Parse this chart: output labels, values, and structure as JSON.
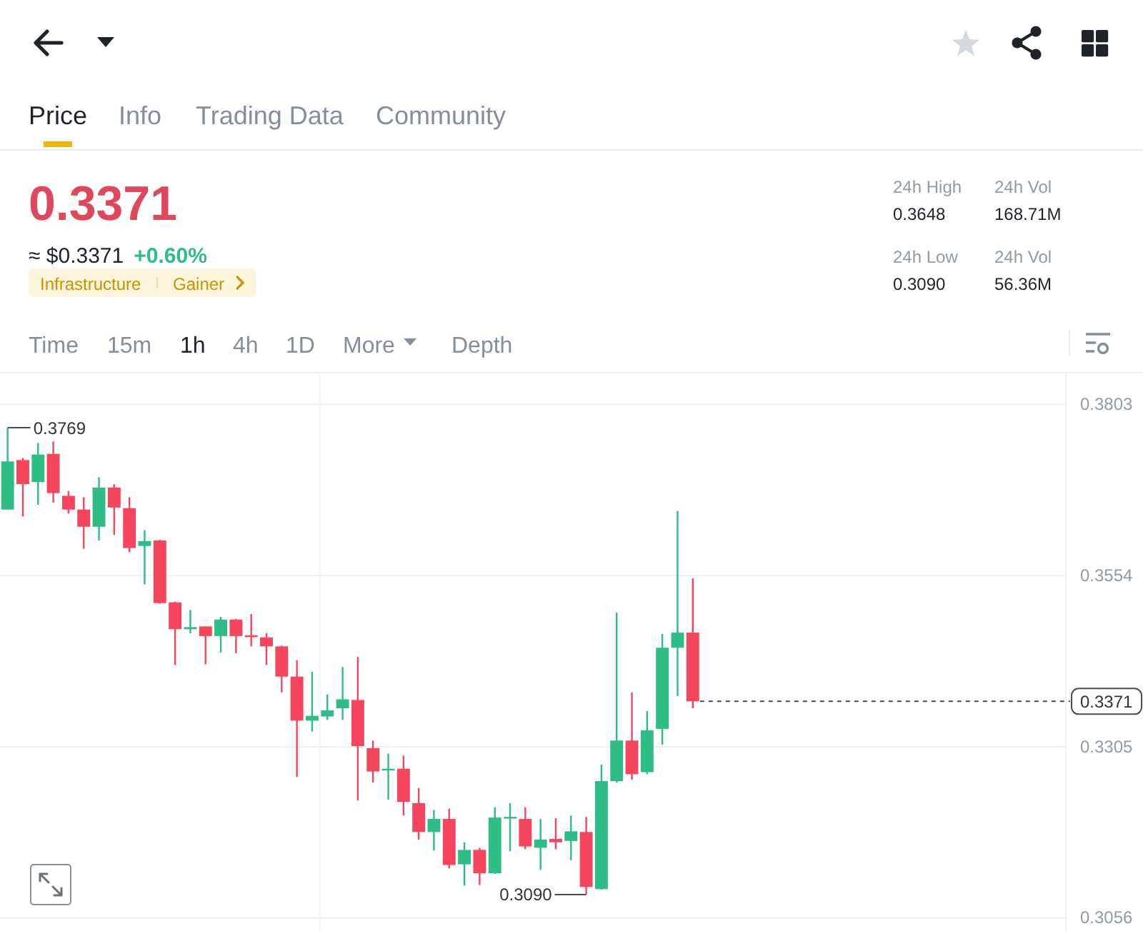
{
  "chart_data": {
    "type": "candlestick",
    "categories": [
      null,
      null,
      null,
      null,
      null,
      null,
      null,
      null,
      null,
      null,
      null,
      null,
      null,
      null,
      null,
      null,
      null,
      null,
      null,
      null,
      null,
      null,
      null,
      null,
      null,
      null,
      null,
      null,
      null,
      null,
      null,
      null,
      null,
      null,
      null,
      null,
      null,
      null,
      null,
      null,
      null,
      null,
      null,
      null,
      null,
      null,
      null,
      null,
      null,
      null,
      null,
      null,
      null,
      null,
      null,
      null,
      null,
      null,
      null,
      null,
      null,
      null,
      null,
      null,
      null,
      null,
      null,
      null,
      null,
      null
    ],
    "ohlc": [
      [
        0.365,
        0.3769,
        0.365,
        0.372
      ],
      [
        0.3722,
        0.3725,
        0.364,
        0.3687
      ],
      [
        0.369,
        0.3747,
        0.3657,
        0.373
      ],
      [
        0.3731,
        0.3749,
        0.366,
        0.3674
      ],
      [
        0.367,
        0.3677,
        0.3644,
        0.365
      ],
      [
        0.365,
        0.3668,
        0.3593,
        0.3625
      ],
      [
        0.3625,
        0.3697,
        0.3605,
        0.3682
      ],
      [
        0.3682,
        0.3687,
        0.3613,
        0.3653
      ],
      [
        0.3652,
        0.3668,
        0.3588,
        0.3594
      ],
      [
        0.3597,
        0.362,
        0.3541,
        0.3604
      ],
      [
        0.3605,
        0.3606,
        0.3513,
        0.3514
      ],
      [
        0.3515,
        0.3516,
        0.3424,
        0.3476
      ],
      [
        0.3476,
        0.3504,
        0.347,
        0.3479
      ],
      [
        0.348,
        0.348,
        0.3425,
        0.3466
      ],
      [
        0.3466,
        0.3494,
        0.3442,
        0.349
      ],
      [
        0.349,
        0.3491,
        0.3441,
        0.3466
      ],
      [
        0.3467,
        0.3498,
        0.3451,
        0.3465
      ],
      [
        0.3464,
        0.347,
        0.3424,
        0.3451
      ],
      [
        0.3451,
        0.3452,
        0.3384,
        0.3407
      ],
      [
        0.3407,
        0.3431,
        0.3261,
        0.3343
      ],
      [
        0.3343,
        0.3414,
        0.3327,
        0.335
      ],
      [
        0.3349,
        0.3381,
        0.3344,
        0.3358
      ],
      [
        0.3361,
        0.3421,
        0.3344,
        0.3374
      ],
      [
        0.3373,
        0.3436,
        0.3227,
        0.3306
      ],
      [
        0.3303,
        0.3314,
        0.3253,
        0.3269
      ],
      [
        0.3271,
        0.3295,
        0.3228,
        0.3273
      ],
      [
        0.3273,
        0.3292,
        0.3205,
        0.3225
      ],
      [
        0.3223,
        0.3245,
        0.317,
        0.3181
      ],
      [
        0.3181,
        0.3213,
        0.3154,
        0.32
      ],
      [
        0.32,
        0.3215,
        0.3128,
        0.3133
      ],
      [
        0.3134,
        0.3166,
        0.3103,
        0.3155
      ],
      [
        0.3155,
        0.3158,
        0.3104,
        0.3121
      ],
      [
        0.3121,
        0.3217,
        0.312,
        0.3202
      ],
      [
        0.3201,
        0.3223,
        0.3153,
        0.3203
      ],
      [
        0.32,
        0.3217,
        0.3156,
        0.316
      ],
      [
        0.3158,
        0.32,
        0.3126,
        0.317
      ],
      [
        0.3171,
        0.3201,
        0.3156,
        0.3166
      ],
      [
        0.3168,
        0.3205,
        0.314,
        0.3182
      ],
      [
        0.3181,
        0.3203,
        0.309,
        0.3101
      ],
      [
        0.3098,
        0.3279,
        0.3097,
        0.3255
      ],
      [
        0.3255,
        0.35,
        0.3253,
        0.3314
      ],
      [
        0.3314,
        0.3384,
        0.3257,
        0.3265
      ],
      [
        0.3268,
        0.3357,
        0.3265,
        0.3329
      ],
      [
        0.3331,
        0.3469,
        0.3308,
        0.3449
      ],
      [
        0.3449,
        0.3648,
        0.3379,
        0.3471
      ],
      [
        0.3471,
        0.355,
        0.3361,
        0.3371
      ],
      null,
      null,
      null,
      null,
      null,
      null,
      null,
      null,
      null,
      null,
      null,
      null,
      null,
      null,
      null,
      null,
      null,
      null,
      null,
      null,
      null,
      null,
      null,
      null
    ],
    "colors": [
      "#2ebd85",
      "#f6465d",
      "#2ebd85",
      "#f6465d",
      "#f6465d",
      "#f6465d",
      "#2ebd85",
      "#f6465d",
      "#f6465d",
      "#2ebd85",
      "#f6465d",
      "#f6465d",
      "#2ebd85",
      "#f6465d",
      "#2ebd85",
      "#f6465d",
      "#f6465d",
      "#f6465d",
      "#f6465d",
      "#f6465d",
      "#2ebd85",
      "#2ebd85",
      "#2ebd85",
      "#f6465d",
      "#f6465d",
      "#2ebd85",
      "#f6465d",
      "#f6465d",
      "#2ebd85",
      "#f6465d",
      "#2ebd85",
      "#f6465d",
      "#2ebd85",
      "#2ebd85",
      "#f6465d",
      "#2ebd85",
      "#f6465d",
      "#2ebd85",
      "#f6465d",
      "#2ebd85",
      "#2ebd85",
      "#f6465d",
      "#2ebd85",
      "#2ebd85",
      "#2ebd85",
      "#f6465d",
      null,
      null,
      null,
      null,
      null,
      null,
      null,
      null,
      null,
      null,
      null,
      null,
      null,
      null,
      null,
      null,
      null,
      null,
      null,
      null,
      null,
      null,
      null,
      null
    ],
    "ylim": [
      0.3037,
      0.3847
    ],
    "yticks": [
      0.3056,
      0.3305,
      0.3554,
      0.3803
    ],
    "grid": "y",
    "tick_labels": "y",
    "ref_lines": [
      {
        "axis": "y",
        "value": 0.3371,
        "label": "0.3371",
        "color": "#474d57",
        "line_style": "dashed"
      }
    ],
    "annotations": [
      "Price",
      "Info",
      "Trading Data",
      "Community",
      "0.3371",
      "≈ $0.3371",
      "+0.60%",
      "Infrastructure",
      "Gainer",
      "24h High",
      "0.3648",
      "24h Vol",
      "168.71M",
      "24h Low",
      "0.3090",
      "24h Vol",
      "56.36M",
      "Time",
      "15m",
      "1h",
      "4h",
      "1D",
      "More",
      "Depth",
      "0.3769",
      "0.3090"
    ]
  }
}
